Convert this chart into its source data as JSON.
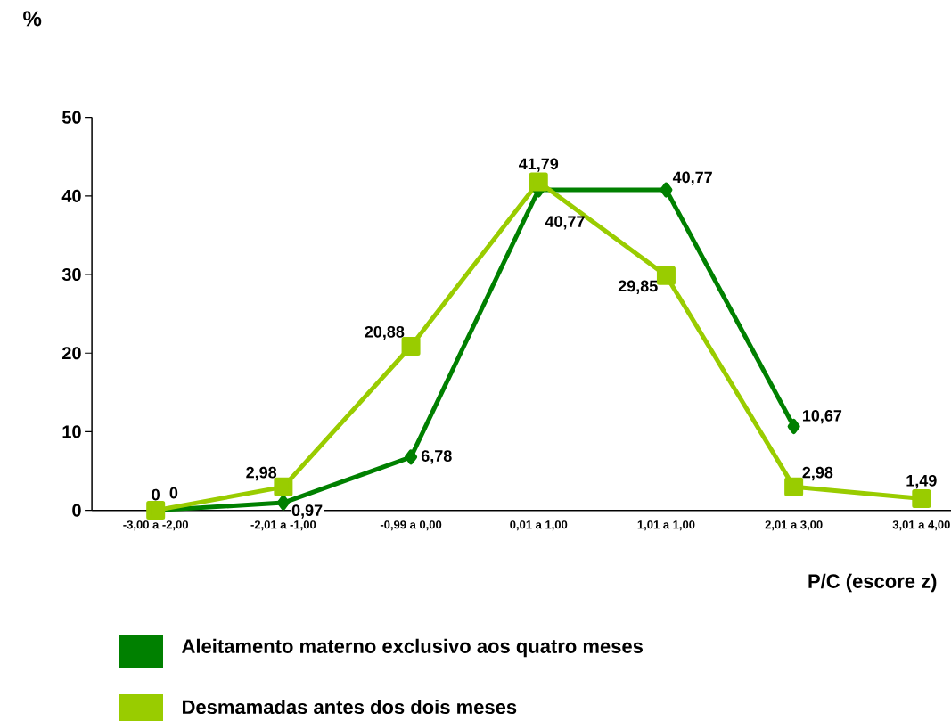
{
  "chart_data": {
    "type": "line",
    "ylabel": "%",
    "xlabel": "P/C (escore z)",
    "categories": [
      "-3,00 a -2,00",
      "-2,01 a -1,00",
      "-0,99 a 0,00",
      "0,01 a 1,00",
      "1,01 a 1,00",
      "2,01 a 3,00",
      "3,01 a 4,00"
    ],
    "series": [
      {
        "name": "Aleitamento materno exclusivo aos quatro meses",
        "color": "#008000",
        "marker": "diamond",
        "values": [
          0,
          0.97,
          6.78,
          40.77,
          40.77,
          10.67,
          null
        ],
        "value_labels": [
          "0",
          "0,97",
          "6,78",
          "40,77",
          "40,77",
          "10,67",
          null
        ]
      },
      {
        "name": "Desmamadas antes dos dois meses",
        "color": "#99cc00",
        "marker": "square",
        "values": [
          0,
          2.98,
          20.88,
          41.79,
          29.85,
          2.98,
          1.49
        ],
        "value_labels": [
          "0",
          "2,98",
          "20,88",
          "41,79",
          "29,85",
          "2,98",
          "1,49"
        ]
      }
    ],
    "ylim": [
      0,
      50
    ],
    "yticks": [
      0,
      10,
      20,
      30,
      40,
      50
    ],
    "grid": false,
    "legend": "bottom",
    "line_style": "solid"
  }
}
